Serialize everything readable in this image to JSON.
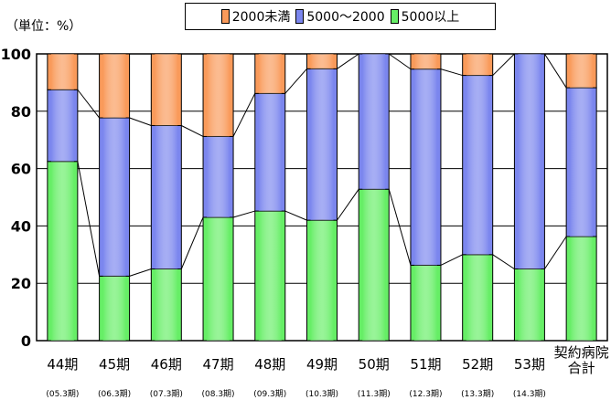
{
  "chart_data": {
    "type": "bar",
    "stacked": true,
    "unit_label": "（単位：%）",
    "ylim": [
      0,
      100
    ],
    "yticks": [
      0,
      20,
      40,
      60,
      80,
      100
    ],
    "categories": [
      "44期",
      "45期",
      "46期",
      "47期",
      "48期",
      "49期",
      "50期",
      "51期",
      "52期",
      "53期",
      "契約病院\n合計"
    ],
    "subcategories": [
      "(05.3期)",
      "(06.3期)",
      "(07.3期)",
      "(08.3期)",
      "(09.3期)",
      "(10.3期)",
      "(11.3期)",
      "(12.3期)",
      "(13.3期)",
      "(14.3期)",
      ""
    ],
    "series": [
      {
        "name": "5000以上",
        "color": "#66ee66",
        "values": [
          62.5,
          22.5,
          25,
          43,
          45.2,
          42,
          52.8,
          26.3,
          30,
          25,
          36.3
        ]
      },
      {
        "name": "5000～2000",
        "color": "#7b86ee",
        "values": [
          25,
          55.2,
          50,
          28.2,
          41,
          52.8,
          47.2,
          68.4,
          62.5,
          75,
          51.9
        ]
      },
      {
        "name": "2000未満",
        "color": "#f99a5a",
        "values": [
          12.5,
          22.3,
          25,
          28.8,
          13.8,
          5.2,
          0,
          5.3,
          7.5,
          0,
          11.8
        ]
      }
    ],
    "legend_order": [
      "2000未満",
      "5000～2000",
      "5000以上"
    ],
    "connector_lines": true,
    "grid": true
  }
}
